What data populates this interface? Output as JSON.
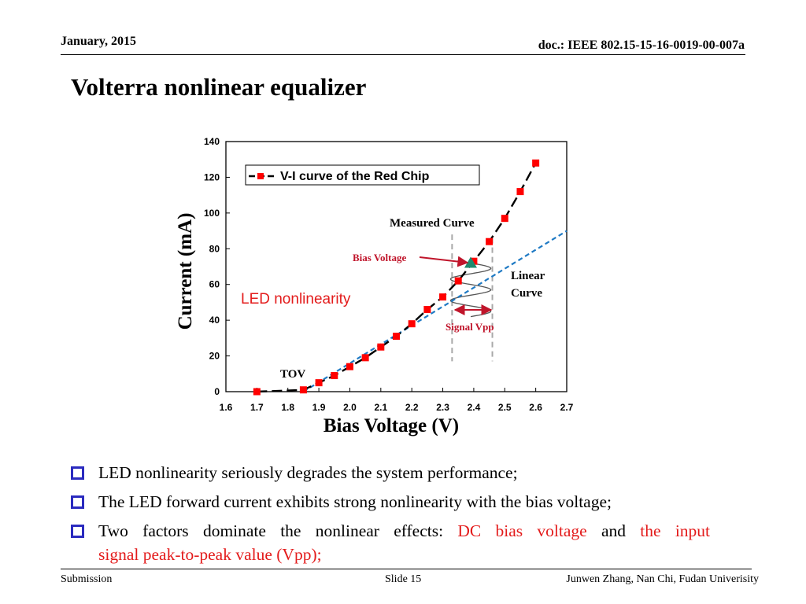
{
  "header": {
    "date": "January, 2015",
    "doc": "doc.: IEEE 802.15-15-16-0019-00-007a"
  },
  "slide_title": "Volterra nonlinear equalizer",
  "chart_data": {
    "type": "line",
    "xlabel": "Bias Voltage (V)",
    "ylabel": "Current (mA)",
    "xlim": [
      1.6,
      2.7
    ],
    "ylim": [
      0,
      140
    ],
    "x_ticks": [
      "1.6",
      "1.7",
      "1.8",
      "1.9",
      "2.0",
      "2.1",
      "2.2",
      "2.3",
      "2.4",
      "2.5",
      "2.6",
      "2.7"
    ],
    "y_ticks": [
      "0",
      "20",
      "40",
      "60",
      "80",
      "100",
      "120",
      "140"
    ],
    "grid": false,
    "legend": "top-left",
    "series": [
      {
        "name": "V-I curve of the Red Chip",
        "color": "#000000",
        "marker_color": "#ff0000",
        "x": [
          1.7,
          1.85,
          1.9,
          1.95,
          2.0,
          2.05,
          2.1,
          2.15,
          2.2,
          2.25,
          2.3,
          2.35,
          2.4,
          2.45,
          2.5,
          2.55,
          2.6
        ],
        "y": [
          0,
          1,
          5,
          9,
          14,
          19,
          25,
          31,
          38,
          46,
          53,
          62,
          73,
          84,
          97,
          112,
          128
        ]
      }
    ],
    "linear_curve": {
      "color": "#1f7ac4",
      "x": [
        1.85,
        2.7
      ],
      "y": [
        0,
        90
      ]
    },
    "vpp_bounds": [
      2.33,
      2.46
    ],
    "bias_point": {
      "x": 2.39,
      "y": 72,
      "color": "#1f8a6e"
    },
    "annotations": {
      "measured": "Measured Curve",
      "bias": "Bias Voltage",
      "linear_1": "Linear",
      "linear_2": "Curve",
      "led_nonlinearity": "LED nonlinearity",
      "signal_vpp": "Signal Vpp",
      "tov": "TOV"
    }
  },
  "bullets": [
    {
      "text": "LED nonlinearity seriously degrades the system performance;"
    },
    {
      "text": "The LED forward current exhibits strong nonlinearity with the bias voltage;"
    },
    {
      "p1": "Two factors dominate the nonlinear effects:",
      "r1": "DC bias voltage",
      "p2": "and",
      "r2": "the input",
      "r3": "signal peak-to-peak value (Vpp);"
    }
  ],
  "footer": {
    "left": "Submission",
    "mid": "Slide 15",
    "right": "Junwen Zhang, Nan Chi, Fudan Univerisity"
  }
}
